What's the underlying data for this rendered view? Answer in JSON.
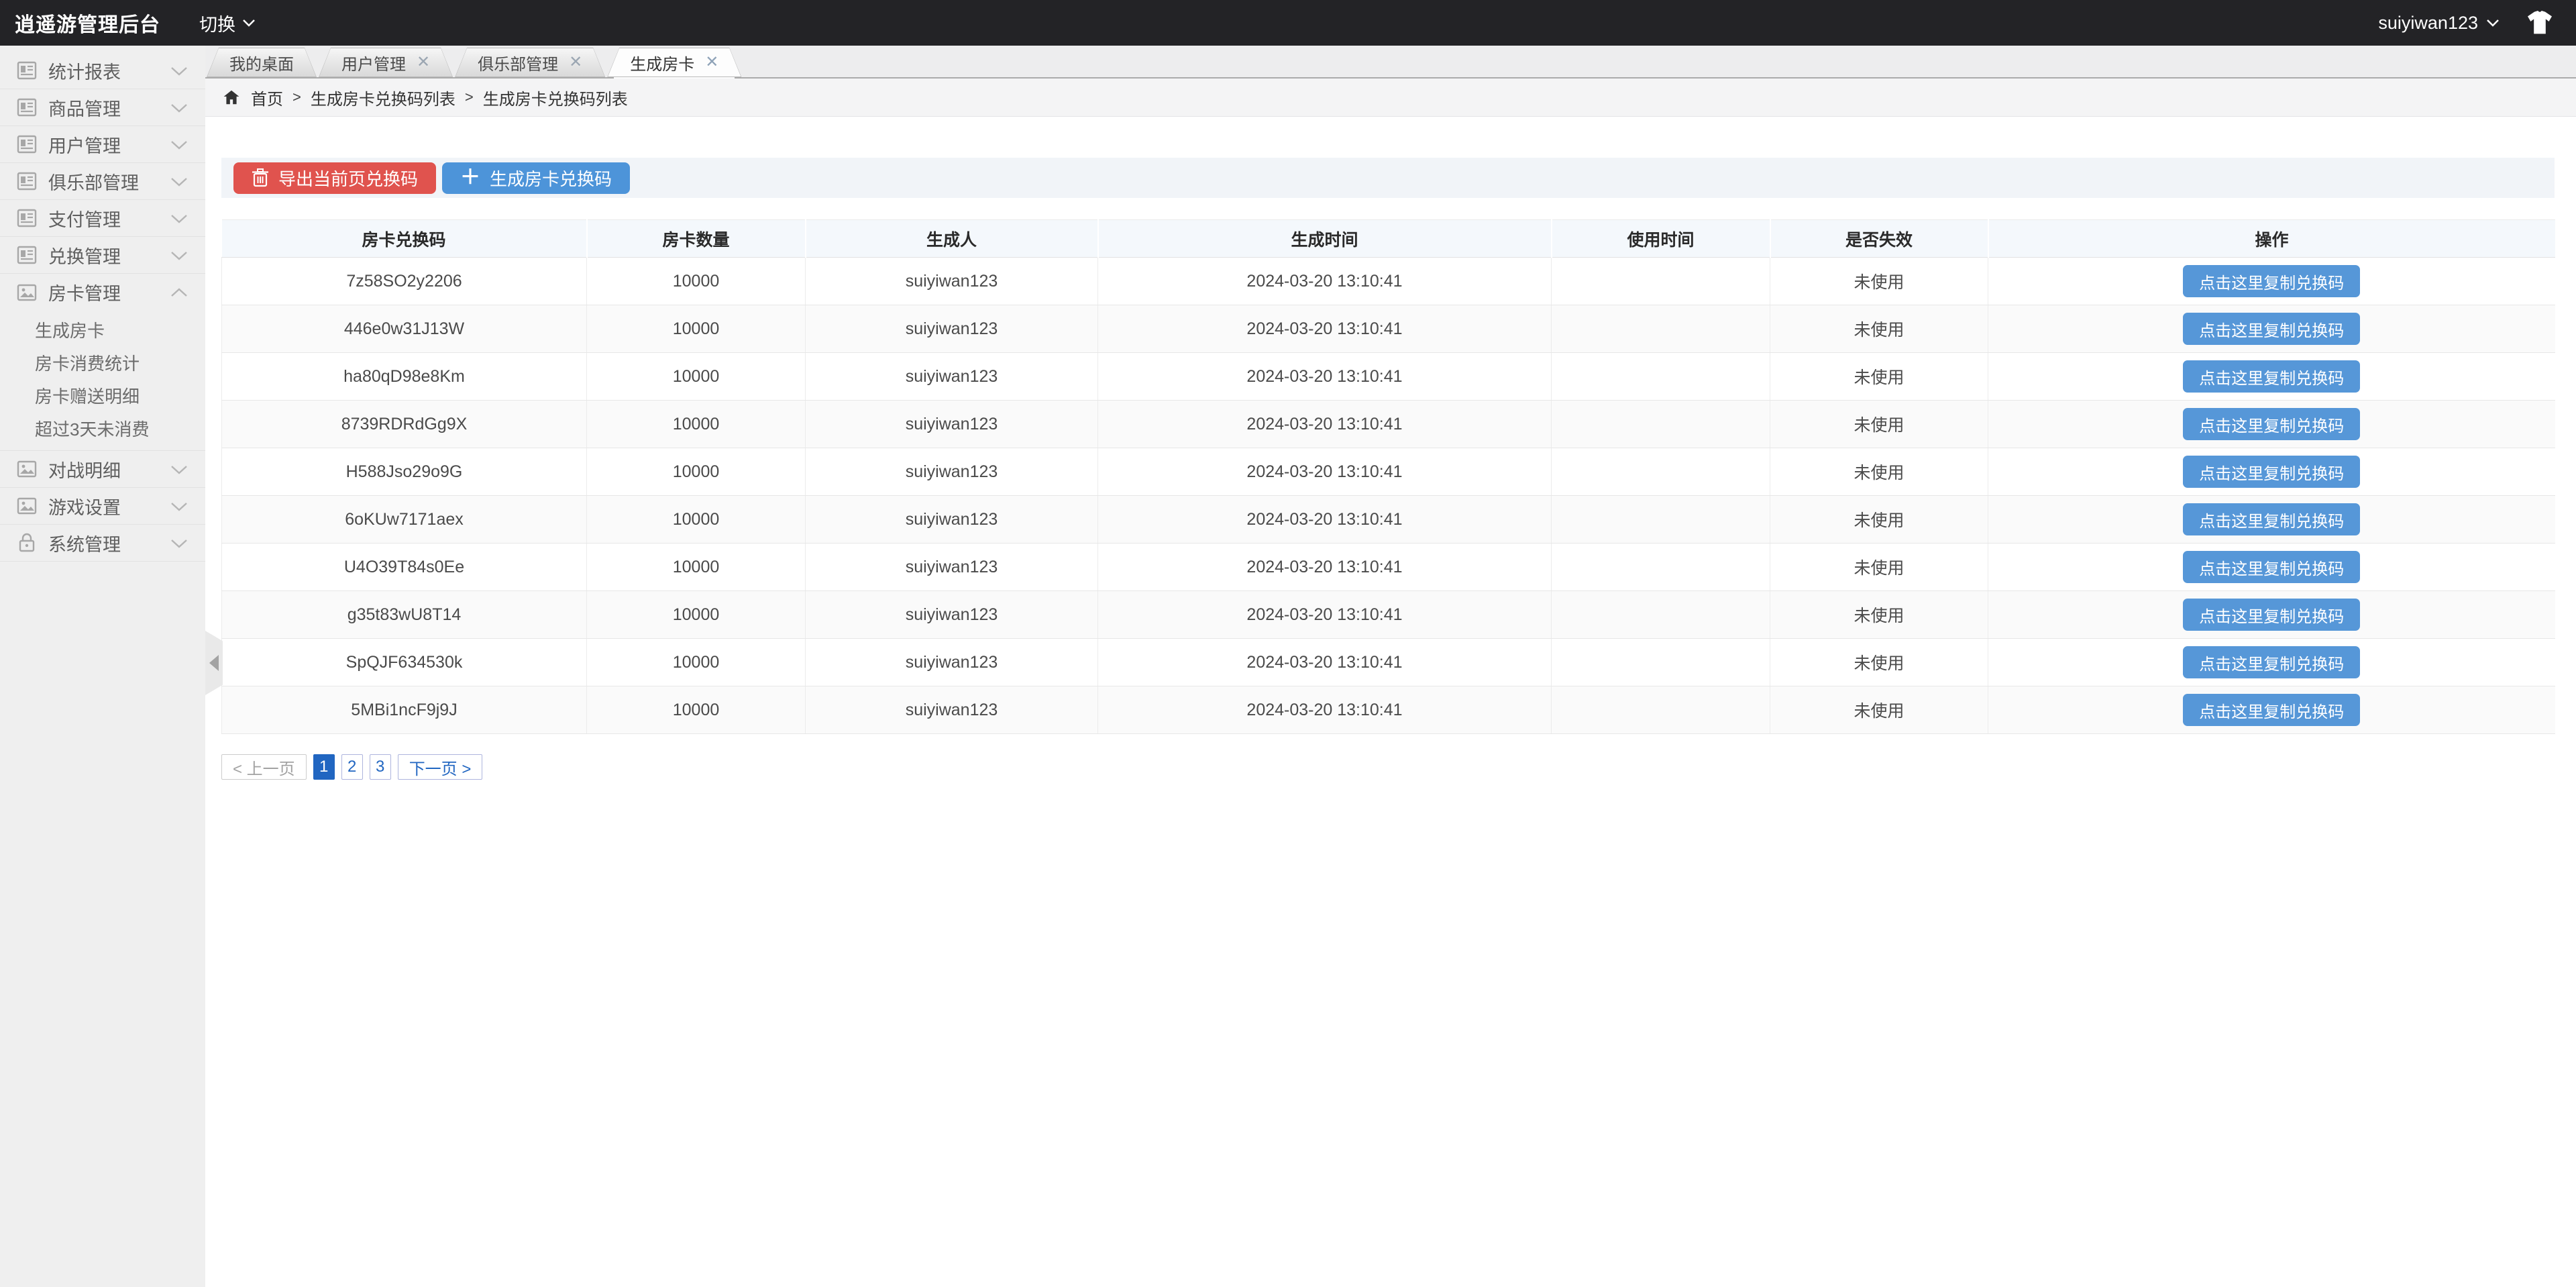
{
  "topbar": {
    "title": "逍遥游管理后台",
    "switch_label": "切换",
    "username": "suiyiwan123"
  },
  "sidebar": {
    "items": [
      {
        "label": "统计报表",
        "icon": "doc-icon",
        "expanded": false
      },
      {
        "label": "商品管理",
        "icon": "doc-icon",
        "expanded": false
      },
      {
        "label": "用户管理",
        "icon": "doc-icon",
        "expanded": false
      },
      {
        "label": "俱乐部管理",
        "icon": "doc-icon",
        "expanded": false
      },
      {
        "label": "支付管理",
        "icon": "doc-icon",
        "expanded": false
      },
      {
        "label": "兑换管理",
        "icon": "doc-icon",
        "expanded": false
      },
      {
        "label": "房卡管理",
        "icon": "image-icon",
        "expanded": true,
        "children": [
          "生成房卡",
          "房卡消费统计",
          "房卡赠送明细",
          "超过3天未消费"
        ]
      },
      {
        "label": "对战明细",
        "icon": "image-icon",
        "expanded": false
      },
      {
        "label": "游戏设置",
        "icon": "image-icon",
        "expanded": false
      },
      {
        "label": "系统管理",
        "icon": "lock-icon",
        "expanded": false
      }
    ]
  },
  "tabs": [
    {
      "label": "我的桌面",
      "closable": false,
      "active": false
    },
    {
      "label": "用户管理",
      "closable": true,
      "active": false
    },
    {
      "label": "俱乐部管理",
      "closable": true,
      "active": false
    },
    {
      "label": "生成房卡",
      "closable": true,
      "active": true
    }
  ],
  "breadcrumb": {
    "home": "首页",
    "separator": ">",
    "items": [
      "生成房卡兑换码列表",
      "生成房卡兑换码列表"
    ]
  },
  "toolbar": {
    "export_label": "导出当前页兑换码",
    "generate_label": "生成房卡兑换码"
  },
  "table": {
    "columns": [
      "房卡兑换码",
      "房卡数量",
      "生成人",
      "生成时间",
      "使用时间",
      "是否失效",
      "操作"
    ],
    "action_label": "点击这里复制兑换码",
    "rows": [
      {
        "code": "7z58SO2y2206",
        "quantity": "10000",
        "creator": "suiyiwan123",
        "created_at": "2024-03-20 13:10:41",
        "used_at": "",
        "status": "未使用"
      },
      {
        "code": "446e0w31J13W",
        "quantity": "10000",
        "creator": "suiyiwan123",
        "created_at": "2024-03-20 13:10:41",
        "used_at": "",
        "status": "未使用"
      },
      {
        "code": "ha80qD98e8Km",
        "quantity": "10000",
        "creator": "suiyiwan123",
        "created_at": "2024-03-20 13:10:41",
        "used_at": "",
        "status": "未使用"
      },
      {
        "code": "8739RDRdGg9X",
        "quantity": "10000",
        "creator": "suiyiwan123",
        "created_at": "2024-03-20 13:10:41",
        "used_at": "",
        "status": "未使用"
      },
      {
        "code": "H588Jso29o9G",
        "quantity": "10000",
        "creator": "suiyiwan123",
        "created_at": "2024-03-20 13:10:41",
        "used_at": "",
        "status": "未使用"
      },
      {
        "code": "6oKUw7171aex",
        "quantity": "10000",
        "creator": "suiyiwan123",
        "created_at": "2024-03-20 13:10:41",
        "used_at": "",
        "status": "未使用"
      },
      {
        "code": "U4O39T84s0Ee",
        "quantity": "10000",
        "creator": "suiyiwan123",
        "created_at": "2024-03-20 13:10:41",
        "used_at": "",
        "status": "未使用"
      },
      {
        "code": "g35t83wU8T14",
        "quantity": "10000",
        "creator": "suiyiwan123",
        "created_at": "2024-03-20 13:10:41",
        "used_at": "",
        "status": "未使用"
      },
      {
        "code": "SpQJF634530k",
        "quantity": "10000",
        "creator": "suiyiwan123",
        "created_at": "2024-03-20 13:10:41",
        "used_at": "",
        "status": "未使用"
      },
      {
        "code": "5MBi1ncF9j9J",
        "quantity": "10000",
        "creator": "suiyiwan123",
        "created_at": "2024-03-20 13:10:41",
        "used_at": "",
        "status": "未使用"
      }
    ]
  },
  "pagination": {
    "prev_label": "< 上一页",
    "pages": [
      "1",
      "2",
      "3"
    ],
    "active_page": "1",
    "next_label": "下一页 >"
  },
  "colors": {
    "topbar_bg": "#232326",
    "accent_red": "#e0534e",
    "accent_blue": "#4d94d9",
    "copy_button_blue": "#5697d8",
    "pagination_active_blue": "#2166c1",
    "table_header_bg": "#f4f8fc"
  }
}
